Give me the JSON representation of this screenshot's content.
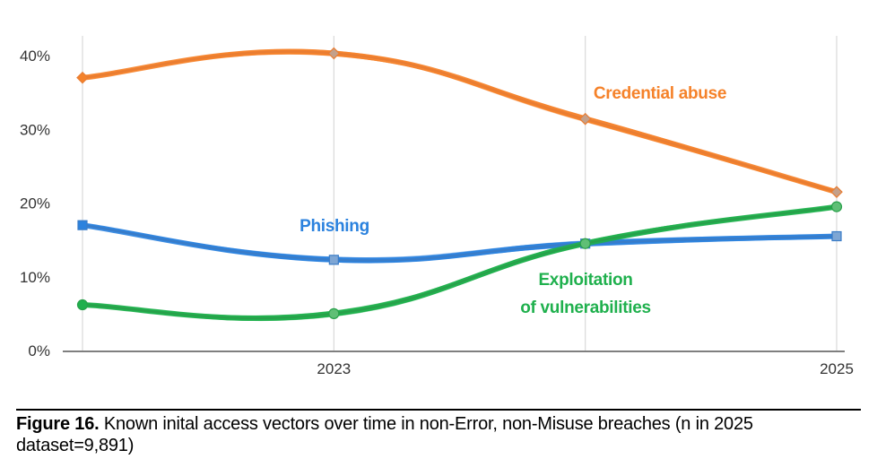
{
  "chart_data": {
    "type": "line",
    "title": "",
    "x": [
      "2022",
      "2023",
      "2024",
      "2025"
    ],
    "x_tick_labels": [
      "",
      "2023",
      "",
      "2025"
    ],
    "ylim": [
      0,
      40
    ],
    "y_ticks": [
      0,
      10,
      20,
      30,
      40
    ],
    "y_tick_labels": [
      "0%",
      "10%",
      "20%",
      "30%",
      "40%"
    ],
    "ylabel": "",
    "xlabel": "",
    "grid": "vertical",
    "legend": "inline labels",
    "series": [
      {
        "name": "Credential abuse",
        "label_lines": [
          "Credential abuse"
        ],
        "values": [
          37,
          40.3,
          31.4,
          21.5
        ],
        "marker": "diamond",
        "color": "#f5822a",
        "line_color": "#e87d33"
      },
      {
        "name": "Phishing",
        "label_lines": [
          "Phishing"
        ],
        "values": [
          17,
          12.3,
          14.5,
          15.5
        ],
        "marker": "square",
        "color": "#2b82de",
        "line_color": "#3a7cc7"
      },
      {
        "name": "Exploitation of vulnerabilities",
        "label_lines": [
          "Exploitation",
          "of vulnerabilities"
        ],
        "values": [
          6.2,
          5,
          14.5,
          19.5
        ],
        "marker": "circle",
        "color": "#1fb04d",
        "line_color": "#28a04a"
      }
    ]
  },
  "caption": {
    "figure_label": "Figure 16.",
    "text": " Known inital access vectors over time in non-Error, non-Misuse breaches (n in 2025 dataset=9,891)"
  }
}
